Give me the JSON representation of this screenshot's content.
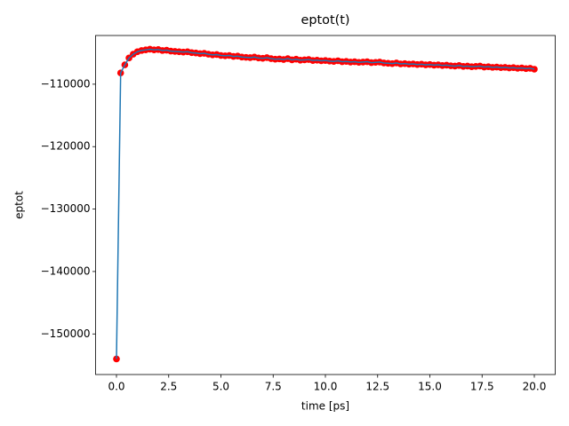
{
  "chart_data": {
    "type": "line",
    "title": "eptot(t)",
    "x_label": "time [ps]",
    "y_label": "eptot",
    "x": [
      0,
      0.2,
      0.4,
      0.6,
      0.8,
      1,
      1.2,
      1.4,
      1.6,
      1.8,
      2,
      2.2,
      2.4,
      2.6,
      2.8,
      3,
      3.2,
      3.4,
      3.6,
      3.8,
      4,
      4.2,
      4.4,
      4.6,
      4.8,
      5,
      5.2,
      5.4,
      5.6,
      5.8,
      6,
      6.2,
      6.4,
      6.6,
      6.8,
      7,
      7.2,
      7.4,
      7.6,
      7.8,
      8,
      8.2,
      8.4,
      8.6,
      8.8,
      9,
      9.2,
      9.4,
      9.6,
      9.8,
      10,
      10.2,
      10.4,
      10.6,
      10.8,
      11,
      11.2,
      11.4,
      11.6,
      11.8,
      12,
      12.2,
      12.4,
      12.6,
      12.8,
      13,
      13.2,
      13.4,
      13.6,
      13.8,
      14,
      14.2,
      14.4,
      14.6,
      14.8,
      15,
      15.2,
      15.4,
      15.6,
      15.8,
      16,
      16.2,
      16.4,
      16.6,
      16.8,
      17,
      17.2,
      17.4,
      17.6,
      17.8,
      18,
      18.2,
      18.4,
      18.6,
      18.8,
      19,
      19.2,
      19.4,
      19.6,
      19.8,
      20
    ],
    "series": [
      {
        "color": "#1f77b4",
        "marker_color": "#ff0000",
        "values": [
          -154000,
          -108200,
          -106900,
          -105800,
          -105200,
          -104800,
          -104600,
          -104500,
          -104400,
          -104500,
          -104450,
          -104600,
          -104550,
          -104700,
          -104750,
          -104800,
          -104850,
          -104800,
          -104950,
          -105000,
          -105100,
          -105050,
          -105200,
          -105300,
          -105250,
          -105400,
          -105450,
          -105400,
          -105550,
          -105500,
          -105650,
          -105700,
          -105750,
          -105650,
          -105800,
          -105850,
          -105750,
          -105900,
          -106000,
          -105950,
          -106050,
          -105900,
          -106100,
          -106000,
          -106150,
          -106100,
          -106050,
          -106200,
          -106150,
          -106250,
          -106200,
          -106300,
          -106350,
          -106250,
          -106400,
          -106350,
          -106450,
          -106400,
          -106500,
          -106450,
          -106400,
          -106550,
          -106500,
          -106450,
          -106600,
          -106650,
          -106700,
          -106600,
          -106750,
          -106700,
          -106800,
          -106750,
          -106850,
          -106800,
          -106900,
          -106850,
          -106950,
          -106900,
          -107000,
          -106950,
          -107050,
          -107100,
          -107000,
          -107150,
          -107100,
          -107200,
          -107150,
          -107100,
          -107250,
          -107200,
          -107300,
          -107250,
          -107350,
          -107300,
          -107400,
          -107350,
          -107450,
          -107400,
          -107500,
          -107450,
          -107600
        ]
      }
    ],
    "xlim": [
      -1,
      21
    ],
    "xticks": [
      {
        "value": 0,
        "label": "0.0"
      },
      2.5,
      {
        "value": 5,
        "label": "5.0"
      },
      7.5,
      {
        "value": 10,
        "label": "10.0"
      },
      12.5,
      {
        "value": 15,
        "label": "15.0"
      },
      17.5,
      {
        "value": 20,
        "label": "20.0"
      }
    ],
    "ylim": [
      -156500,
      -102200
    ],
    "yticks": [
      {
        "value": -150000,
        "label": "−150000"
      },
      {
        "value": -140000,
        "label": "−140000"
      },
      {
        "value": -130000,
        "label": "−130000"
      },
      {
        "value": -120000,
        "label": "−120000"
      },
      {
        "value": -110000,
        "label": "−110000"
      }
    ],
    "grid": false
  }
}
